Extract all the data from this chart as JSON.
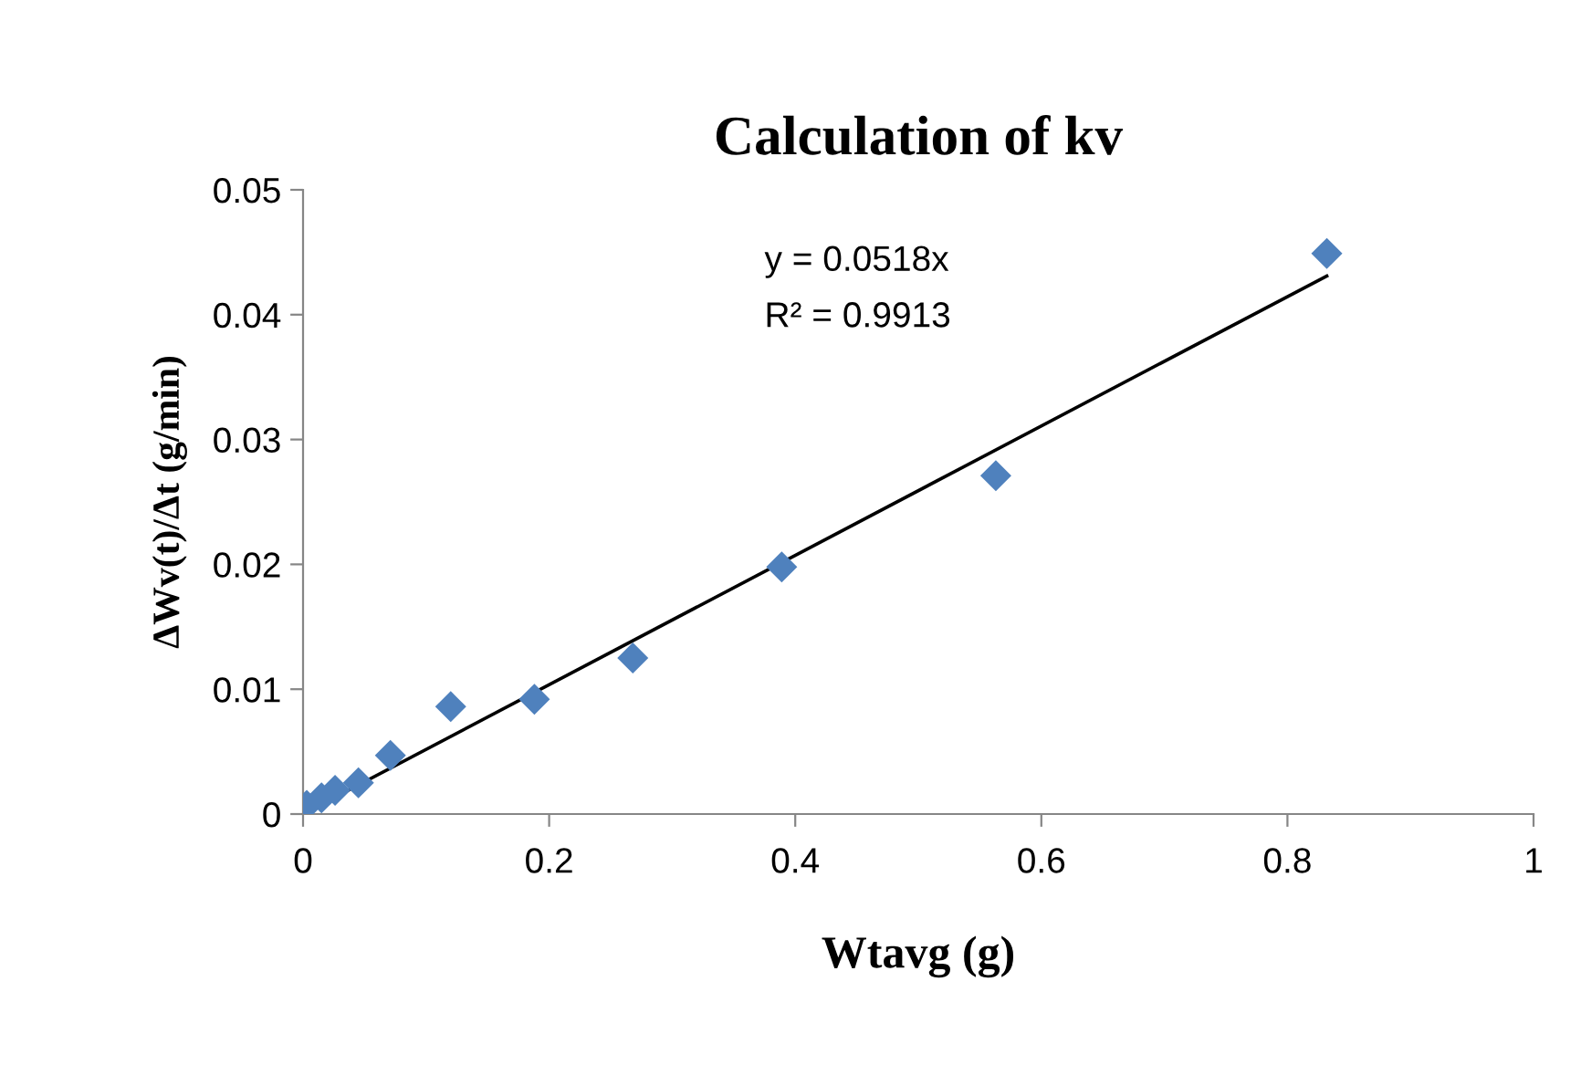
{
  "chart_data": {
    "type": "scatter",
    "title": "Calculation of kv",
    "xlabel": "Wtavg (g)",
    "ylabel": "ΔWv(t)/Δt (g/min)",
    "series": [
      {
        "color": "#4f81bd",
        "marker": "diamond",
        "x": [
          0.003,
          0.015,
          0.026,
          0.045,
          0.071,
          0.12,
          0.188,
          0.268,
          0.389,
          0.563,
          0.832
        ],
        "values": [
          0.0007,
          0.0013,
          0.0019,
          0.0025,
          0.0047,
          0.0086,
          0.0092,
          0.0125,
          0.0198,
          0.0271,
          0.0449
        ]
      },
      {
        "type": "line",
        "color": "#000000",
        "marker": "none",
        "x": [
          0,
          0.832
        ],
        "values": [
          0,
          0.0431
        ]
      }
    ],
    "annotations": [
      "y = 0.0518x",
      "R² = 0.9913"
    ],
    "xlim": [
      0,
      1
    ],
    "xticks": [
      0,
      0.2,
      0.4,
      0.6,
      0.8,
      1
    ],
    "ylim": [
      0,
      0.05
    ],
    "yticks": [
      0,
      0.01,
      0.02,
      0.03,
      0.04,
      0.05
    ],
    "grid": false,
    "legend": false
  }
}
